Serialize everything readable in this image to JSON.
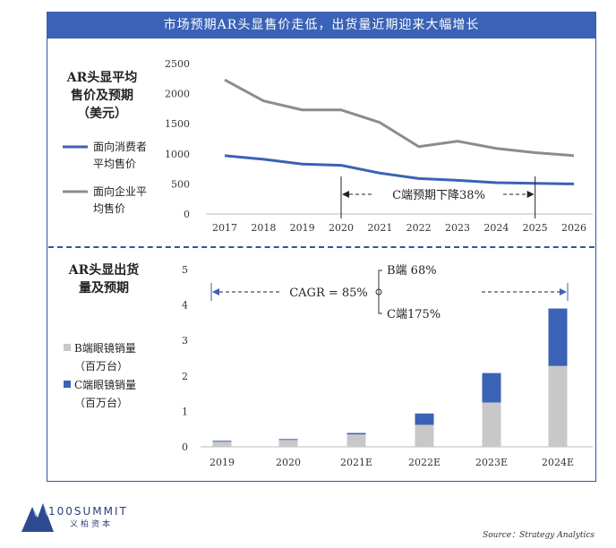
{
  "banner_title": "市场预期AR头显售价走低，出货量近期迎来大幅增长",
  "source": "Source：Strategy Analytics",
  "logo": {
    "name": "100SUMMIT",
    "sub": "义柏资本"
  },
  "chart_data": [
    {
      "type": "line",
      "title_lines": [
        "AR头显平均",
        "售价及预期",
        "（美元）"
      ],
      "x": [
        "2017",
        "2018",
        "2019",
        "2020",
        "2021",
        "2022",
        "2023",
        "2024",
        "2025",
        "2026"
      ],
      "ylim": [
        0,
        2500
      ],
      "yticks": [
        0,
        500,
        1000,
        1500,
        2000,
        2500
      ],
      "series": [
        {
          "name_lines": [
            "面向消费者",
            "平均售价"
          ],
          "color": "#3a62b6",
          "values": [
            970,
            910,
            830,
            810,
            680,
            590,
            560,
            520,
            510,
            500
          ]
        },
        {
          "name_lines": [
            "面向企业平",
            "均售价"
          ],
          "color": "#8c8c8c",
          "values": [
            2230,
            1880,
            1730,
            1730,
            1520,
            1120,
            1210,
            1090,
            1020,
            970
          ]
        }
      ],
      "annotation": "C端预期下降38%"
    },
    {
      "type": "bar",
      "stacked": true,
      "title_lines": [
        "AR头显出货",
        "量及预期"
      ],
      "categories": [
        "2019",
        "2020",
        "2021E",
        "2022E",
        "2023E",
        "2024E"
      ],
      "ylim": [
        0,
        5
      ],
      "yticks": [
        0,
        1,
        2,
        3,
        4,
        5
      ],
      "series": [
        {
          "name_lines": [
            "B端眼镜销量",
            "（百万台）"
          ],
          "color": "#c8c8c8",
          "values": [
            0.15,
            0.2,
            0.35,
            0.62,
            1.25,
            2.28
          ]
        },
        {
          "name_lines": [
            "C端眼镜销量",
            "（百万台）"
          ],
          "color": "#3a62b6",
          "values": [
            0.02,
            0.02,
            0.04,
            0.32,
            0.83,
            1.62
          ]
        }
      ],
      "annotations": {
        "cagr": "CAGR = 85%",
        "b": "B端 68%",
        "c": "C端175%"
      }
    }
  ]
}
